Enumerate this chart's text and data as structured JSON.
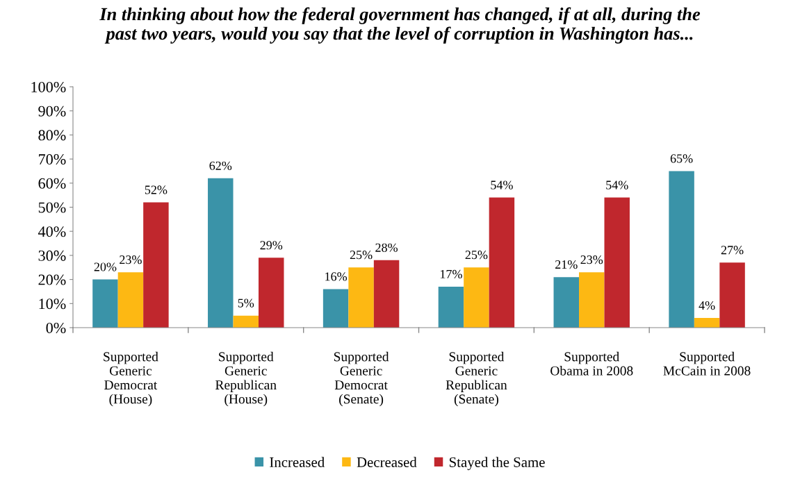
{
  "chart_data": {
    "type": "bar",
    "title": "In thinking about how the federal government has changed, if at all, during the\npast two years, would you say that the level of corruption in Washington has...",
    "categories": [
      "Supported\nGeneric\nDemocrat\n(House)",
      "Supported\nGeneric\nRepublican\n(House)",
      "Supported\nGeneric\nDemocrat\n(Senate)",
      "Supported\nGeneric\nRepublican\n(Senate)",
      "Supported\nObama in 2008",
      "Supported\nMcCain in 2008"
    ],
    "series": [
      {
        "name": "Increased",
        "color": "#3a93a8",
        "values": [
          20,
          62,
          16,
          17,
          21,
          65
        ],
        "value_labels": [
          "20%",
          "62%",
          "16%",
          "17%",
          "21%",
          "65%"
        ]
      },
      {
        "name": "Decreased",
        "color": "#fdb813",
        "values": [
          23,
          5,
          25,
          25,
          23,
          4
        ],
        "value_labels": [
          "23%",
          "5%",
          "25%",
          "25%",
          "23%",
          "4%"
        ]
      },
      {
        "name": "Stayed the Same",
        "color": "#c0272d",
        "values": [
          52,
          29,
          28,
          54,
          54,
          27
        ],
        "value_labels": [
          "52%",
          "29%",
          "28%",
          "54%",
          "54%",
          "27%"
        ]
      }
    ],
    "ylim": [
      0,
      100
    ],
    "yticks": [
      {
        "value": 0,
        "label": "0%"
      },
      {
        "value": 10,
        "label": "10%"
      },
      {
        "value": 20,
        "label": "20%"
      },
      {
        "value": 30,
        "label": "30%"
      },
      {
        "value": 40,
        "label": "40%"
      },
      {
        "value": 50,
        "label": "50%"
      },
      {
        "value": 60,
        "label": "60%"
      },
      {
        "value": 70,
        "label": "70%"
      },
      {
        "value": 80,
        "label": "80%"
      },
      {
        "value": 90,
        "label": "90%"
      },
      {
        "value": 100,
        "label": "100%"
      }
    ],
    "grid": false,
    "legend": "bottom"
  }
}
